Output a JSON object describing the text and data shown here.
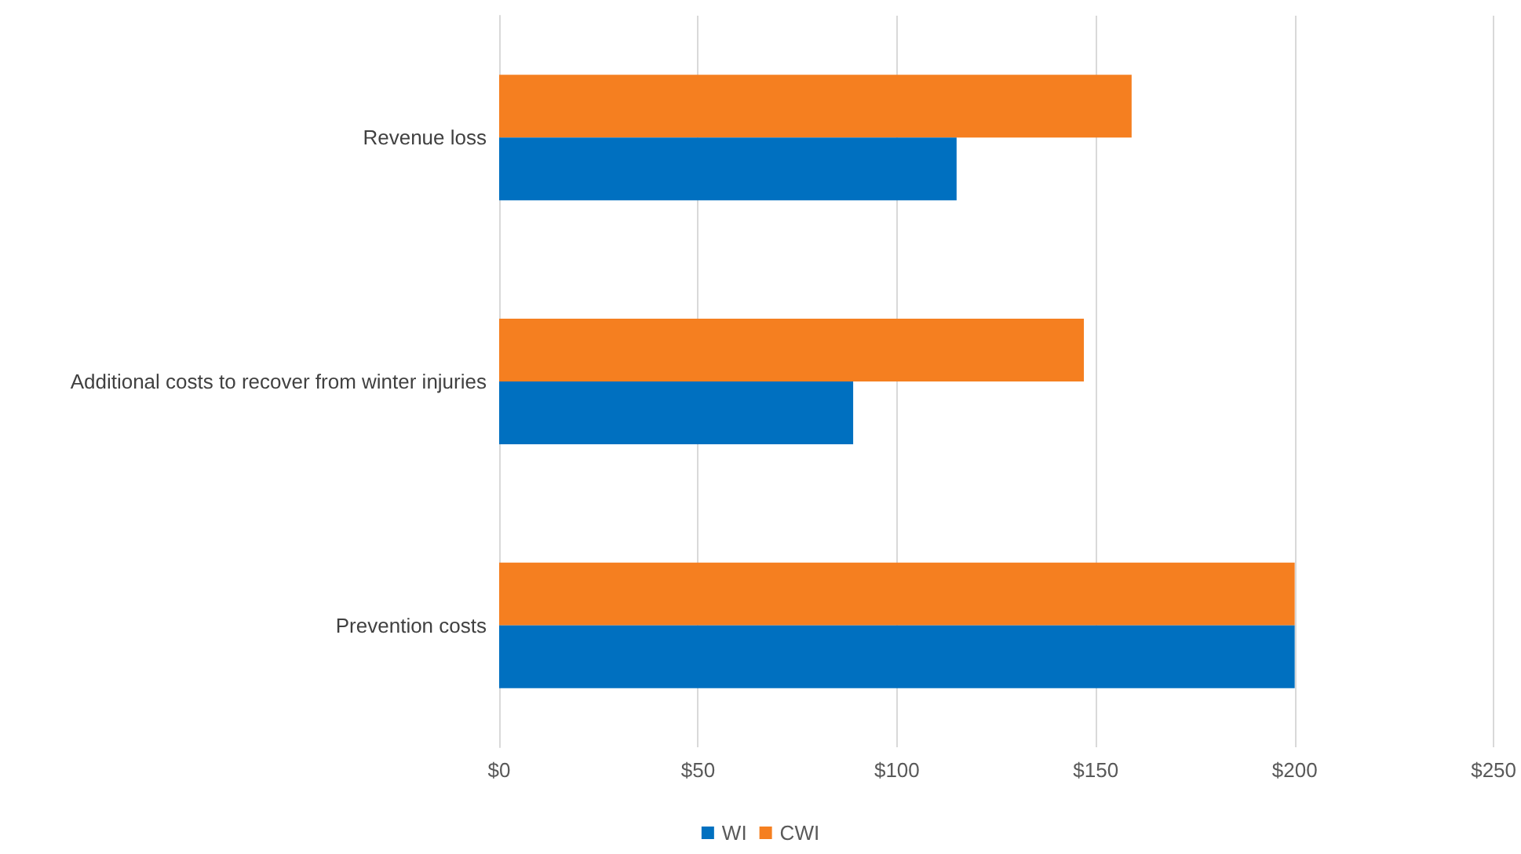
{
  "chart_data": {
    "type": "bar",
    "orientation": "horizontal",
    "categories": [
      "Revenue loss",
      "Additional costs to recover from winter injuries",
      "Prevention costs"
    ],
    "series": [
      {
        "name": "WI",
        "color": "#0070c0",
        "values": [
          115,
          89,
          200
        ]
      },
      {
        "name": "CWI",
        "color": "#f57f20",
        "values": [
          159,
          147,
          200
        ]
      }
    ],
    "xlim": [
      0,
      250
    ],
    "xticks": [
      {
        "value": 0,
        "label": "$0"
      },
      {
        "value": 50,
        "label": "$50"
      },
      {
        "value": 100,
        "label": "$100"
      },
      {
        "value": 150,
        "label": "$150"
      },
      {
        "value": 200,
        "label": "$200"
      },
      {
        "value": 250,
        "label": "$250"
      }
    ],
    "grid": "x",
    "legend": "bottom"
  }
}
